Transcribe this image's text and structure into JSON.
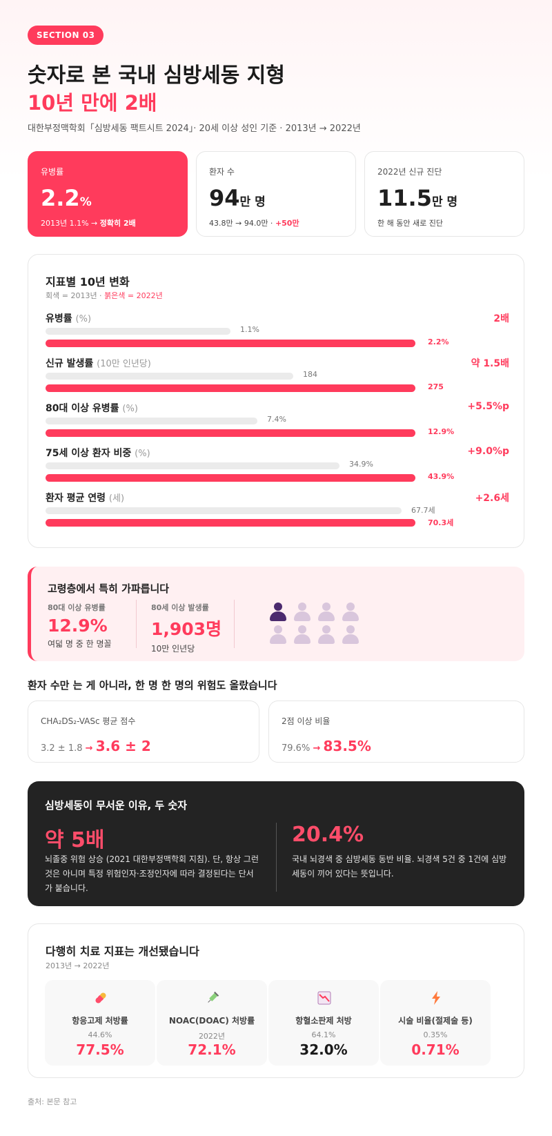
{
  "badge": "SECTION 03",
  "title": "숫자로 본 국내 심방세동 지형",
  "title_highlight": "10년 만에 2배",
  "subtitle": "대한부정맥학회「심방세동 팩트시트 2024」· 20세 이상 성인 기준 · 2013년 → 2022년",
  "stats": [
    {
      "label": "유병률",
      "value": "2.2",
      "unit": "%",
      "sub_prefix": "2013년 1.1% → ",
      "sub_highlight": "정확히 2배"
    },
    {
      "label": "환자 수",
      "value": "94",
      "unit": "만 명",
      "sub_prefix": "43.8만 → 94.0만 · ",
      "sub_highlight": "+50만"
    },
    {
      "label": "2022년 신규 진단",
      "value": "11.5",
      "unit": "만 명",
      "sub_prefix": "한 해 동안 새로 진단",
      "sub_highlight": ""
    }
  ],
  "indicators": {
    "title": "지표별 10년 변화",
    "legend_gray": "회색 = 2013년 · ",
    "legend_red": "붉은색 = 2022년",
    "items": [
      {
        "name": "유병률",
        "unit": "(%)",
        "change": "2배",
        "before": 1.1,
        "before_label": "1.1%",
        "after": 2.2,
        "after_label": "2.2%",
        "scale": 2.2
      },
      {
        "name": "신규 발생률",
        "unit": "(10만 인년당)",
        "change": "약 1.5배",
        "before": 184,
        "before_label": "184",
        "after": 275,
        "after_label": "275",
        "scale": 275
      },
      {
        "name": "80대 이상 유병률",
        "unit": "(%)",
        "change": "+5.5%p",
        "before": 7.4,
        "before_label": "7.4%",
        "after": 12.9,
        "after_label": "12.9%",
        "scale": 12.9
      },
      {
        "name": "75세 이상 환자 비중",
        "unit": "(%)",
        "change": "+9.0%p",
        "before": 34.9,
        "before_label": "34.9%",
        "after": 43.9,
        "after_label": "43.9%",
        "scale": 43.9
      },
      {
        "name": "환자 평균 연령",
        "unit": "(세)",
        "change": "+2.6세",
        "before": 67.7,
        "before_label": "67.7세",
        "after": 70.3,
        "after_label": "70.3세",
        "scale": 70.3
      }
    ]
  },
  "elderly": {
    "title": "고령층에서 특히 가파릅니다",
    "col1": {
      "label": "80대 이상 유병률",
      "value": "12.9%",
      "sub": "여덟 명 중 한 명꼴"
    },
    "col2": {
      "label": "80세 이상 발생률",
      "value": "1,903명",
      "sub": "10만 인년당"
    },
    "people_highlight": 1,
    "people_total": 8,
    "colors": {
      "highlight": "#4b2a6e",
      "muted": "#d9c6dc"
    }
  },
  "risk_section": {
    "title": "환자 수만 는 게 아니라, 한 명 한 명의 위험도 올랐습니다",
    "cards": [
      {
        "label": "CHA₂DS₂-VASc 평균 점수",
        "before": "3.2 ± 1.8",
        "arrow": "→",
        "after": "3.6 ± 2"
      },
      {
        "label": "2점 이상 비율",
        "before": "79.6%",
        "arrow": "→",
        "after": "83.5%"
      }
    ]
  },
  "dark": {
    "title": "심방세동이 무서운 이유, 두 숫자",
    "left": {
      "value": "약 5배",
      "text": "뇌졸중 위험 상승 (2021 대한부정맥학회 지침). 단, 항상 그런 것은 아니며 특정 위험인자·조정인자에 따라 결정된다는 단서가 붙습니다."
    },
    "right": {
      "value": "20.4%",
      "text": "국내 뇌경색 중 심방세동 동반 비율. 뇌경색 5건 중 1건에 심방세동이 끼어 있다는 뜻입니다."
    }
  },
  "treatment": {
    "title": "다행히 치료 지표는 개선됐습니다",
    "subtitle": "2013년 → 2022년",
    "tiles": [
      {
        "icon": "pill-icon",
        "label": "항응고제 처방률",
        "before": "44.6%",
        "after": "77.5%",
        "after_color": "red"
      },
      {
        "icon": "syringe-icon",
        "label": "NOAC(DOAC) 처방률",
        "before": "2022년",
        "after": "72.1%",
        "after_color": "red"
      },
      {
        "icon": "chart-down-icon",
        "label": "항혈소판제 처방",
        "before": "64.1%",
        "after": "32.0%",
        "after_color": "black"
      },
      {
        "icon": "lightning-icon",
        "label": "시술 비율(절제술 등)",
        "before": "0.35%",
        "after": "0.71%",
        "after_color": "red"
      }
    ]
  },
  "source": "출처: 본문 참고",
  "accent": "#ff3b5c"
}
